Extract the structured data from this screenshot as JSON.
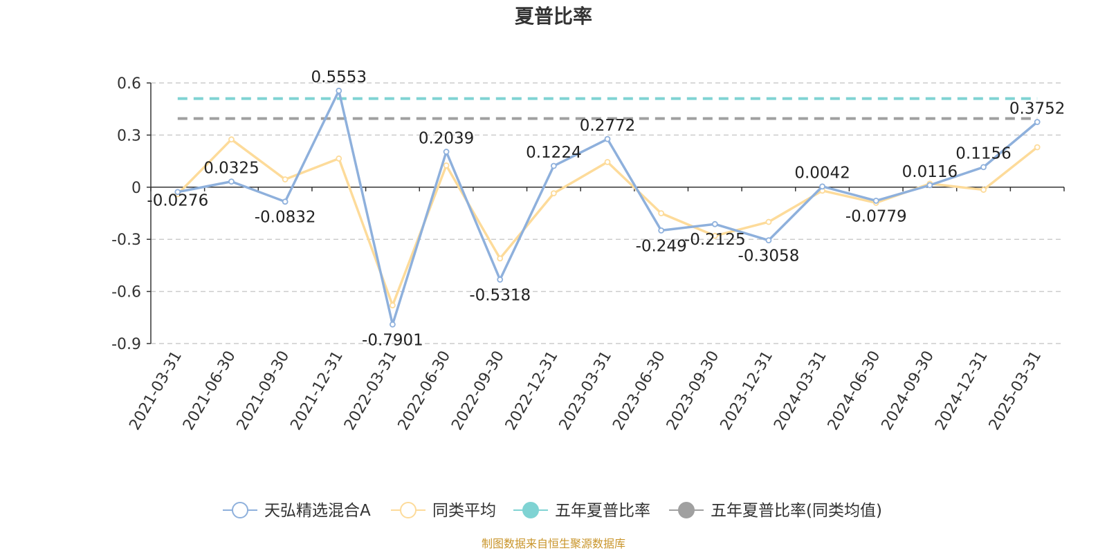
{
  "chart_data": {
    "type": "line",
    "title": "夏普比率",
    "source": "制图数据来自恒生聚源数据库",
    "categories": [
      "2021-03-31",
      "2021-06-30",
      "2021-09-30",
      "2021-12-31",
      "2022-03-31",
      "2022-06-30",
      "2022-09-30",
      "2022-12-31",
      "2023-03-31",
      "2023-06-30",
      "2023-09-30",
      "2023-12-31",
      "2024-03-31",
      "2024-06-30",
      "2024-09-30",
      "2024-12-31",
      "2025-03-31"
    ],
    "yticks": [
      "0.6",
      "0.3",
      "0",
      "-0.3",
      "-0.6",
      "-0.9"
    ],
    "ylim": [
      -0.9,
      0.6
    ],
    "grid": true,
    "legend_position": "bottom",
    "series": [
      {
        "name": "天弘精选混合A",
        "color": "#8eb0dc",
        "values": [
          -0.0276,
          0.0325,
          -0.0832,
          0.5553,
          -0.7901,
          0.2039,
          -0.5318,
          0.1224,
          0.2772,
          -0.249,
          -0.2125,
          -0.3058,
          0.0042,
          -0.0779,
          0.0116,
          0.1156,
          0.3752
        ],
        "labels": [
          "-0.0276",
          "0.0325",
          "-0.0832",
          "0.5553",
          "-0.7901",
          "0.2039",
          "-0.5318",
          "0.1224",
          "0.2772",
          "-0.249",
          "-0.2125",
          "-0.3058",
          "0.0042",
          "-0.0779",
          "0.0116",
          "0.1156",
          "0.3752"
        ]
      },
      {
        "name": "同类平均",
        "color": "#fddb9a",
        "values": [
          -0.04,
          0.275,
          0.045,
          0.165,
          -0.68,
          0.125,
          -0.41,
          -0.035,
          0.145,
          -0.15,
          -0.28,
          -0.2,
          -0.02,
          -0.09,
          0.02,
          -0.015,
          0.23
        ]
      }
    ],
    "reference_lines": [
      {
        "name": "五年夏普比率",
        "color": "#7fd3d3",
        "value": 0.51
      },
      {
        "name": "五年夏普比率(同类均值)",
        "color": "#a0a0a0",
        "value": 0.395
      }
    ]
  }
}
